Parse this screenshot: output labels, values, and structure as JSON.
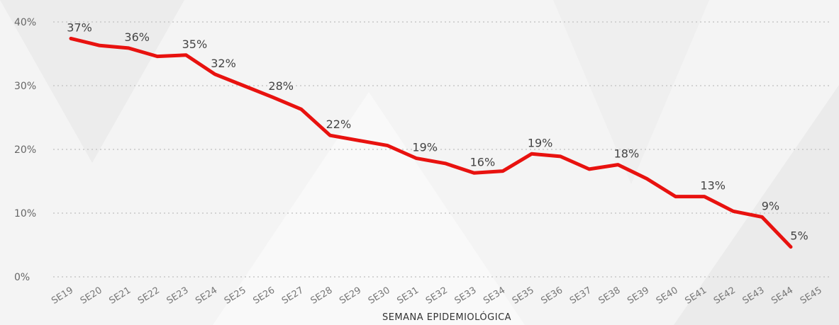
{
  "chart_data": {
    "type": "line",
    "x_label": "SEMANA EPIDEMIOLÓGICA",
    "categories": [
      "SE19",
      "SE20",
      "SE21",
      "SE22",
      "SE23",
      "SE24",
      "SE25",
      "SE26",
      "SE27",
      "SE28",
      "SE29",
      "SE30",
      "SE31",
      "SE32",
      "SE33",
      "SE34",
      "SE35",
      "SE36",
      "SE37",
      "SE38",
      "SE39",
      "SE40",
      "SE41",
      "SE42",
      "SE43",
      "SE44",
      "SE45"
    ],
    "series": [
      {
        "color": "#e8120f",
        "values": [
          37.4,
          36.3,
          35.9,
          34.6,
          34.8,
          31.8,
          30.0,
          28.2,
          26.3,
          22.2,
          21.4,
          20.6,
          18.6,
          17.8,
          16.3,
          16.6,
          19.3,
          18.9,
          16.9,
          17.6,
          15.4,
          12.6,
          12.6,
          10.3,
          9.4,
          4.7,
          null
        ],
        "value_labels": [
          "37%",
          null,
          "36%",
          null,
          "35%",
          "32%",
          null,
          "28%",
          null,
          "22%",
          null,
          null,
          "19%",
          null,
          "16%",
          null,
          "19%",
          null,
          null,
          "18%",
          null,
          null,
          "13%",
          null,
          "9%",
          "5%",
          null
        ]
      }
    ],
    "ylim": [
      0,
      40
    ],
    "yticks": [
      {
        "value": 0,
        "label": "0%"
      },
      {
        "value": 10,
        "label": "10%"
      },
      {
        "value": 20,
        "label": "20%"
      },
      {
        "value": 30,
        "label": "30%"
      },
      {
        "value": 40,
        "label": "40%"
      }
    ],
    "grid": true
  }
}
